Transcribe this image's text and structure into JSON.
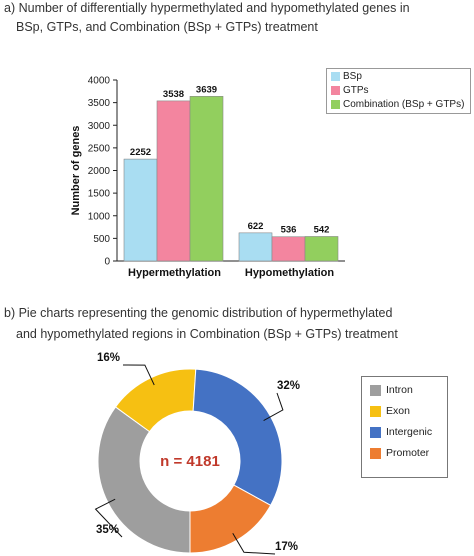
{
  "captions": {
    "a_line1": "a)  Number of differentially hypermethylated and hypomethylated genes in",
    "a_line2": "BSp, GTPs, and Combination (BSp + GTPs) treatment",
    "b_line1": "b)  Pie charts representing the genomic distribution of hypermethylated",
    "b_line2": "and hypomethylated regions in Combination (BSp + GTPs) treatment"
  },
  "chart_data": [
    {
      "type": "bar",
      "title": "",
      "xlabel": "",
      "ylabel": "Number of genes",
      "ylim": [
        0,
        4000
      ],
      "yticks": [
        0,
        500,
        1000,
        1500,
        2000,
        2500,
        3000,
        3500,
        4000
      ],
      "categories": [
        "Hypermethylation",
        "Hypomethylation"
      ],
      "series": [
        {
          "name": "BSp",
          "color": "#a9ddf2",
          "values": [
            2252,
            622
          ]
        },
        {
          "name": "GTPs",
          "color": "#f3859f",
          "values": [
            3538,
            536
          ]
        },
        {
          "name": "Combination (BSp + GTPs)",
          "color": "#92cf5e",
          "values": [
            3639,
            542
          ]
        }
      ],
      "legend_position": "top-right",
      "grid": false
    },
    {
      "type": "pie",
      "center_label": "n = 4181",
      "center_label_color": "#c0392b",
      "slices": [
        {
          "name": "Intron",
          "value": 35,
          "label": "35%",
          "color": "#9e9e9e"
        },
        {
          "name": "Exon",
          "value": 16,
          "label": "16%",
          "color": "#f6c012"
        },
        {
          "name": "Intergenic",
          "value": 32,
          "label": "32%",
          "color": "#4472c4"
        },
        {
          "name": "Promoter",
          "value": 17,
          "label": "17%",
          "color": "#ed7d31"
        }
      ],
      "legend_position": "right"
    }
  ]
}
